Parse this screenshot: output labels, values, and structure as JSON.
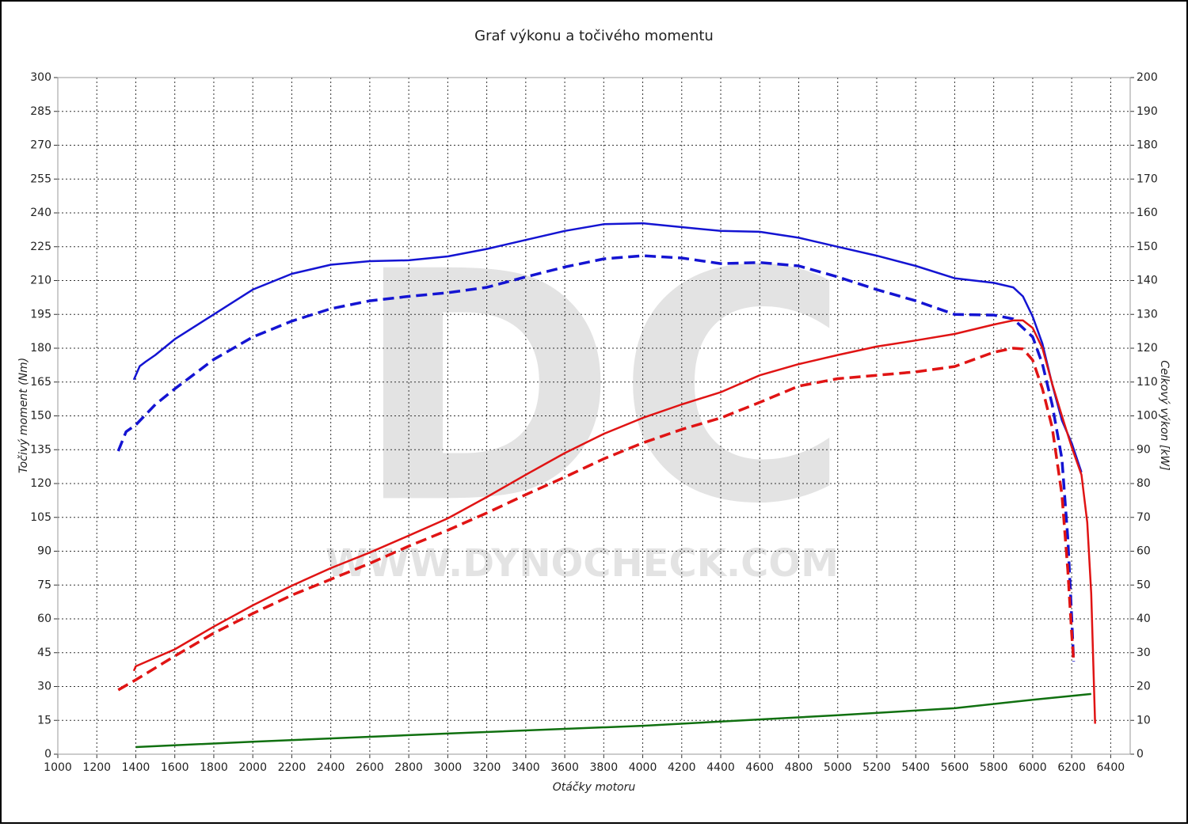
{
  "chart_data": {
    "type": "line",
    "title": "Graf výkonu a točivého momentu",
    "x_label": "Otáčky motoru",
    "y_label": "Točivý moment (Nm)",
    "y2_label": "Celkový výkon [kW]",
    "watermark": [
      "DC",
      "WWW.DYNOCHECK.COM"
    ],
    "xlim": [
      1000,
      6500
    ],
    "xticks": [
      1000,
      1200,
      1400,
      1600,
      1800,
      2000,
      2200,
      2400,
      2600,
      2800,
      3000,
      3200,
      3400,
      3600,
      3800,
      4000,
      4200,
      4400,
      4600,
      4800,
      5000,
      5200,
      5400,
      5600,
      5800,
      6000,
      6200,
      6400
    ],
    "ylim": [
      0,
      300
    ],
    "yticks": [
      0,
      15,
      30,
      45,
      60,
      75,
      90,
      105,
      120,
      135,
      150,
      165,
      180,
      195,
      210,
      225,
      240,
      255,
      270,
      285,
      300
    ],
    "y2lim": [
      0,
      200
    ],
    "y2ticks": [
      0,
      10,
      20,
      30,
      40,
      50,
      60,
      70,
      80,
      90,
      100,
      110,
      120,
      130,
      140,
      150,
      160,
      170,
      180,
      190,
      200
    ],
    "grid": true,
    "series": [
      {
        "color": "#1414d2",
        "dashed": false,
        "x": [
          1390,
          1420,
          1450,
          1500,
          1600,
          1800,
          2000,
          2200,
          2400,
          2600,
          2800,
          3000,
          3200,
          3400,
          3600,
          3800,
          4000,
          4200,
          4400,
          4600,
          4800,
          5000,
          5200,
          5400,
          5600,
          5800,
          5900,
          5950,
          6000,
          6050,
          6100,
          6150,
          6200,
          6250
        ],
        "values": [
          166,
          172,
          174,
          177,
          184,
          195,
          206,
          213,
          217,
          218.6,
          219,
          220.7,
          224,
          228,
          232,
          235,
          235.4,
          233.7,
          232,
          231.6,
          229,
          225,
          221,
          216.5,
          211,
          209,
          207,
          203,
          194,
          182,
          164,
          148,
          138,
          125
        ]
      },
      {
        "color": "#1414d2",
        "dashed": true,
        "x": [
          1310,
          1350,
          1400,
          1500,
          1600,
          1800,
          2000,
          2200,
          2400,
          2600,
          2800,
          3000,
          3200,
          3400,
          3600,
          3800,
          4000,
          4200,
          4400,
          4600,
          4800,
          5000,
          5200,
          5400,
          5600,
          5800,
          5900,
          6000,
          6050,
          6100,
          6150,
          6180,
          6200,
          6210
        ],
        "values": [
          134.4,
          143,
          146,
          155,
          162,
          175,
          185,
          192,
          197.5,
          201,
          203,
          204.6,
          207,
          211.6,
          216,
          219.6,
          221,
          220,
          217.5,
          218,
          216.5,
          211.6,
          206,
          201,
          195,
          194.7,
          193,
          185,
          173,
          155,
          131,
          96,
          61,
          41
        ]
      },
      {
        "color": "#e01414",
        "dashed": false,
        "axis": "y2",
        "x": [
          1390,
          1400,
          1600,
          1800,
          2000,
          2200,
          2400,
          2600,
          2800,
          3000,
          3200,
          3400,
          3600,
          3800,
          4000,
          4200,
          4400,
          4600,
          4800,
          5000,
          5200,
          5400,
          5600,
          5800,
          5900,
          5950,
          6000,
          6050,
          6100,
          6150,
          6200,
          6250,
          6280,
          6300,
          6320
        ],
        "values": [
          24.6,
          26,
          31,
          37.7,
          44,
          49.8,
          55,
          59.6,
          64.6,
          69.7,
          76,
          82.6,
          89,
          94.7,
          99.4,
          103.4,
          107,
          112,
          115.3,
          118,
          120.5,
          122.3,
          124.2,
          127,
          128.2,
          128.2,
          126,
          120,
          109.5,
          100,
          90.8,
          82.6,
          68.5,
          47.5,
          9
        ]
      },
      {
        "color": "#e01414",
        "dashed": true,
        "axis": "y2",
        "x": [
          1310,
          1400,
          1600,
          1800,
          2000,
          2200,
          2400,
          2600,
          2800,
          3000,
          3200,
          3400,
          3600,
          3800,
          4000,
          4200,
          4400,
          4600,
          4800,
          5000,
          5200,
          5400,
          5600,
          5800,
          5900,
          5950,
          6000,
          6050,
          6100,
          6150,
          6180,
          6200,
          6210
        ],
        "values": [
          19,
          22,
          29,
          35.8,
          41.6,
          47,
          51.7,
          56.4,
          61.5,
          66.2,
          71.3,
          76.7,
          81.9,
          87.3,
          92,
          96,
          99.4,
          104,
          108.8,
          111,
          112,
          113,
          114.6,
          118.8,
          120,
          119.8,
          116.5,
          108,
          96.6,
          76.7,
          54.5,
          35.8,
          27.6
        ]
      },
      {
        "color": "#107010",
        "dashed": false,
        "axis": "y2",
        "x": [
          1400,
          2000,
          3000,
          4000,
          5000,
          5600,
          6000,
          6300
        ],
        "values": [
          2.1,
          3.7,
          6.1,
          8.4,
          11.5,
          13.6,
          16.1,
          17.8
        ]
      }
    ]
  }
}
